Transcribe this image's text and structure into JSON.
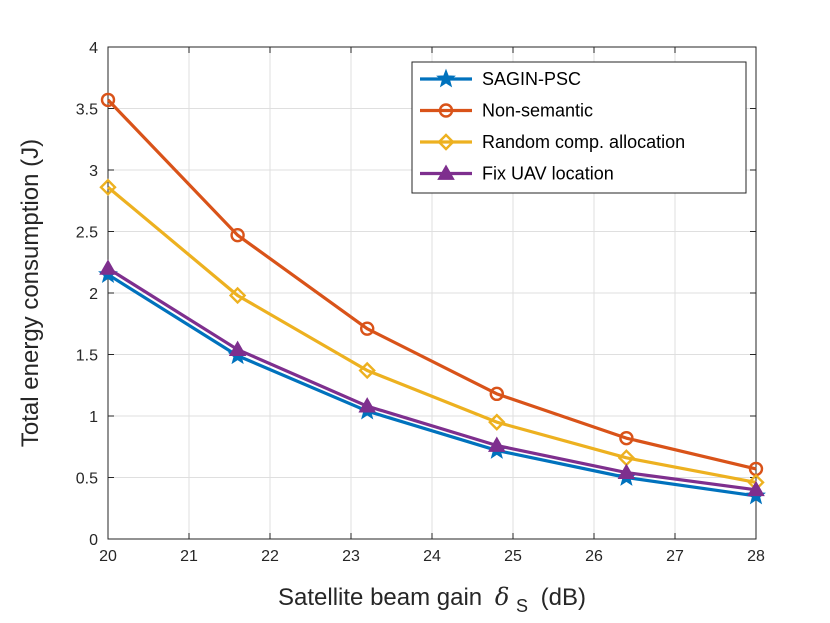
{
  "chart_data": {
    "type": "line",
    "title": "",
    "xlabel": "Satellite beam gain",
    "xlabel_symbol": "δ",
    "xlabel_subscript": "S",
    "xlabel_unit": "(dB)",
    "ylabel": "Total energy consumption (J)",
    "xlim": [
      20,
      28
    ],
    "ylim": [
      0,
      4
    ],
    "xticks": [
      "20",
      "21",
      "22",
      "23",
      "24",
      "25",
      "26",
      "27",
      "28"
    ],
    "yticks": [
      "0",
      "0.5",
      "1",
      "1.5",
      "2",
      "2.5",
      "3",
      "3.5",
      "4"
    ],
    "grid": true,
    "legend_position": "top-right",
    "x": [
      20,
      21.6,
      23.2,
      24.8,
      26.4,
      28
    ],
    "series": [
      {
        "name": "SAGIN-PSC",
        "color": "#0072bd",
        "marker": "pentagram",
        "values": [
          2.15,
          1.49,
          1.04,
          0.72,
          0.5,
          0.35
        ]
      },
      {
        "name": "Non-semantic",
        "color": "#d95319",
        "marker": "circle",
        "values": [
          3.57,
          2.47,
          1.71,
          1.18,
          0.82,
          0.57
        ]
      },
      {
        "name": "Random comp. allocation",
        "color": "#edb120",
        "marker": "diamond",
        "values": [
          2.86,
          1.98,
          1.37,
          0.95,
          0.66,
          0.46
        ]
      },
      {
        "name": "Fix UAV location",
        "color": "#7e2f8e",
        "marker": "triangle",
        "values": [
          2.2,
          1.54,
          1.08,
          0.76,
          0.54,
          0.4
        ]
      }
    ]
  }
}
